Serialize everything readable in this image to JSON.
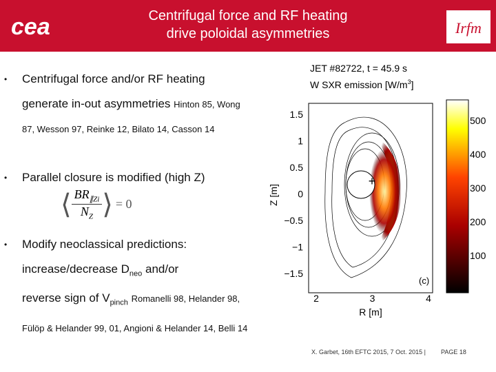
{
  "header": {
    "title_line1": "Centrifugal force and RF heating",
    "title_line2": "drive poloidal asymmetries",
    "logo_left": "cea",
    "logo_right": "Irfm"
  },
  "bullets": [
    {
      "text": "Centrifugal force and/or RF heating generate in-out asymmetries",
      "ref": "Hinton 85, Wong 87, Wesson 97, Reinke 12, Bilato 14, Casson 14"
    },
    {
      "text": "Parallel closure is modified (high Z)",
      "formula": {
        "numerator": "BR",
        "sub": "∥Zi",
        "denominator": "N",
        "den_sub": "Z",
        "rhs": "= 0"
      }
    },
    {
      "text_a": "Modify neoclassical predictions:",
      "text_b": "increase/decrease D",
      "sub_b": "neo",
      "text_c": " and/or",
      "text_d": "reverse sign of V",
      "sub_d": "pinch",
      "ref": "Romanelli 98, Helander 98, Fülöp & Helander 99, 01, Angioni & Helander 14, Belli 14"
    }
  ],
  "figure": {
    "title": "JET #82722, t = 45.9 s",
    "subtitle": "W SXR emission [W/m",
    "subtitle_sup": "3",
    "subtitle_end": "]",
    "yticks": [
      "1.5",
      "1",
      "0.5",
      "0",
      "−0.5",
      "−1",
      "−1.5"
    ],
    "xticks": [
      "2",
      "3",
      "4"
    ],
    "ylabel": "Z [m]",
    "xlabel": "R [m]",
    "panel": "(c)",
    "cbar_ticks": [
      "500",
      "400",
      "300",
      "200",
      "100"
    ]
  },
  "footer": {
    "citation": "X. Garbet, 16th EFTC 2015, 7 Oct. 2015 |",
    "page": "PAGE 18"
  }
}
